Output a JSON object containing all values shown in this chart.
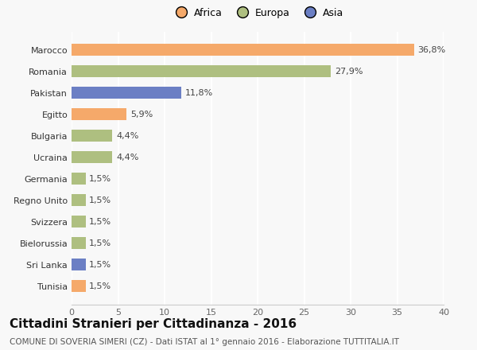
{
  "categories": [
    "Tunisia",
    "Sri Lanka",
    "Bielorussia",
    "Svizzera",
    "Regno Unito",
    "Germania",
    "Ucraina",
    "Bulgaria",
    "Egitto",
    "Pakistan",
    "Romania",
    "Marocco"
  ],
  "values": [
    1.5,
    1.5,
    1.5,
    1.5,
    1.5,
    1.5,
    4.4,
    4.4,
    5.9,
    11.8,
    27.9,
    36.8
  ],
  "labels": [
    "1,5%",
    "1,5%",
    "1,5%",
    "1,5%",
    "1,5%",
    "1,5%",
    "4,4%",
    "4,4%",
    "5,9%",
    "11,8%",
    "27,9%",
    "36,8%"
  ],
  "colors": [
    "#F5A96A",
    "#6B7FC4",
    "#AEBF80",
    "#AEBF80",
    "#AEBF80",
    "#AEBF80",
    "#AEBF80",
    "#AEBF80",
    "#F5A96A",
    "#6B7FC4",
    "#AEBF80",
    "#F5A96A"
  ],
  "legend_labels": [
    "Africa",
    "Europa",
    "Asia"
  ],
  "legend_colors": [
    "#F5A96A",
    "#AEBF80",
    "#6B7FC4"
  ],
  "title": "Cittadini Stranieri per Cittadinanza - 2016",
  "subtitle": "COMUNE DI SOVERIA SIMERI (CZ) - Dati ISTAT al 1° gennaio 2016 - Elaborazione TUTTITALIA.IT",
  "xlim": [
    0,
    40
  ],
  "xticks": [
    0,
    5,
    10,
    15,
    20,
    25,
    30,
    35,
    40
  ],
  "background_color": "#f8f8f8",
  "grid_color": "#ffffff",
  "bar_height": 0.55,
  "title_fontsize": 11,
  "subtitle_fontsize": 7.5,
  "label_fontsize": 8,
  "tick_fontsize": 8,
  "legend_fontsize": 9
}
